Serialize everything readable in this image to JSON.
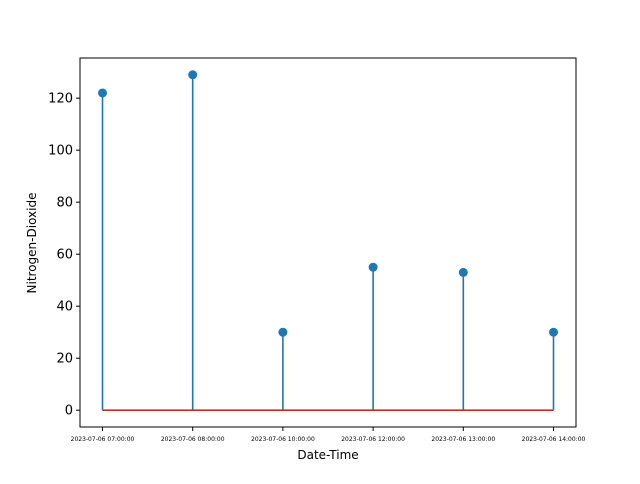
{
  "chart_data": {
    "type": "stem",
    "title": "",
    "xlabel": "Date-Time",
    "ylabel": "Nitrogen-Dioxide",
    "categories": [
      "2023-07-06 07:00:00",
      "2023-07-06 08:00:00",
      "2023-07-06 10:00:00",
      "2023-07-06 12:00:00",
      "2023-07-06 13:00:00",
      "2023-07-06 14:00:00"
    ],
    "values": [
      122,
      129,
      30,
      55,
      53,
      30
    ],
    "ylim": [
      -6.45,
      135.45
    ],
    "yticks": [
      0,
      20,
      40,
      60,
      80,
      100,
      120
    ],
    "grid": false,
    "colors": {
      "stem": "#1f77b4",
      "marker": "#1f77b4",
      "baseline": "#d62728"
    }
  }
}
